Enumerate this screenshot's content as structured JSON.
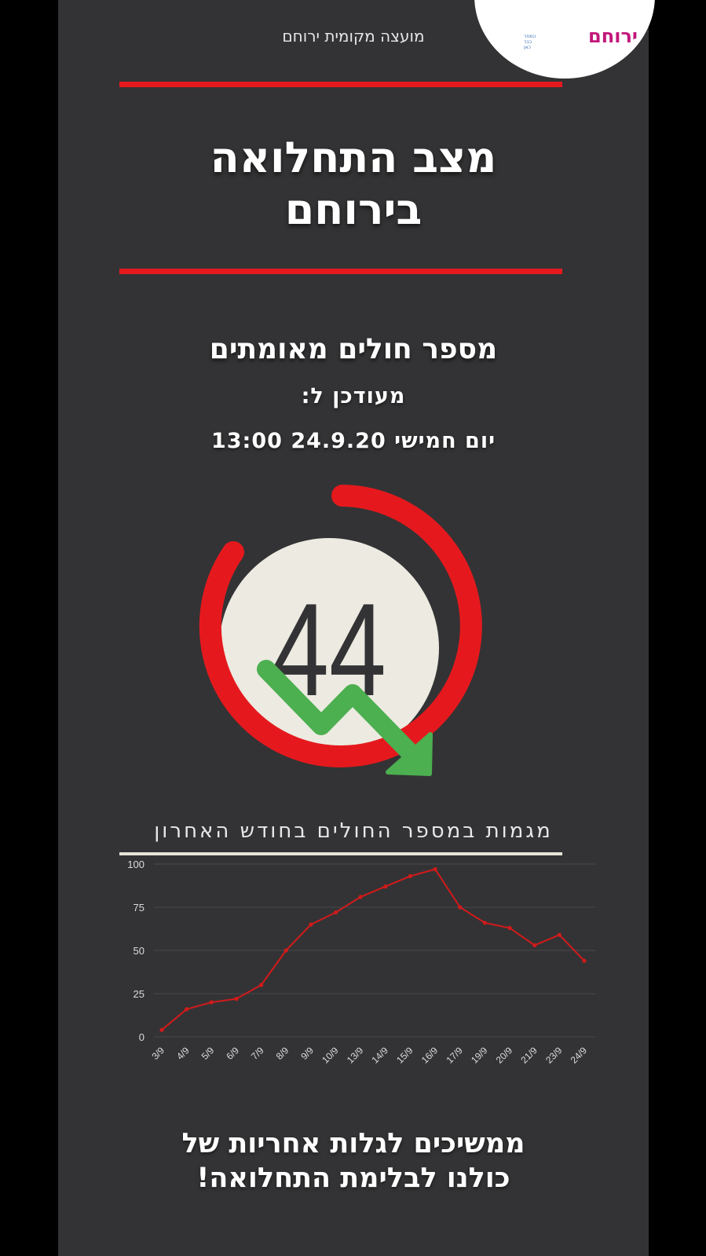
{
  "header": {
    "org_name": "מועצה מקומית ירוחם",
    "logo_text": "ירוחם",
    "logo_small_1": "המחר",
    "logo_small_2": "כבר",
    "logo_small_3": "כאן"
  },
  "title": {
    "line1": "מצב התחלואה",
    "line2": "בירוחם"
  },
  "status": {
    "label": "מספר חולים מאומתים",
    "updated_label": "מעודכן ל:",
    "updated_time": "יום חמישי 24.9.20 13:00"
  },
  "gauge": {
    "value": "44",
    "arc_color": "#e5191d",
    "circle_color": "#eceae1",
    "arrow_color": "#4caf50"
  },
  "chart_title": "מגמות במספר החולים בחודש האחרון",
  "chart_data": {
    "type": "line",
    "title": "מגמות במספר החולים בחודש האחרון",
    "xlabel": "",
    "ylabel": "",
    "categories": [
      "3/9",
      "4/9",
      "5/9",
      "6/9",
      "7/9",
      "8/9",
      "9/9",
      "10/9",
      "13/9",
      "14/9",
      "15/9",
      "16/9",
      "17/9",
      "19/9",
      "20/9",
      "21/9",
      "23/9",
      "24/9"
    ],
    "values": [
      4,
      16,
      20,
      22,
      30,
      50,
      65,
      72,
      81,
      87,
      93,
      97,
      75,
      66,
      63,
      53,
      59,
      44
    ],
    "yticks": [
      "0",
      "25",
      "50",
      "75",
      "100"
    ],
    "ylim": [
      0,
      100
    ],
    "grid": true,
    "line_color": "#d21a1a"
  },
  "footer": {
    "line1": "ממשיכים לגלות אחריות של",
    "line2": "כולנו לבלימת התחלואה!"
  }
}
